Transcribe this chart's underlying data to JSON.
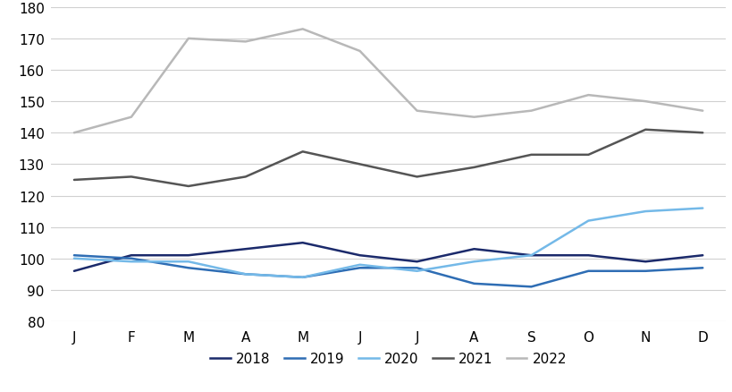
{
  "months": [
    "J",
    "F",
    "M",
    "A",
    "M",
    "J",
    "J",
    "A",
    "S",
    "O",
    "N",
    "D"
  ],
  "series": {
    "2018": [
      96,
      101,
      101,
      103,
      105,
      101,
      99,
      103,
      101,
      101,
      99,
      101
    ],
    "2019": [
      101,
      100,
      97,
      95,
      94,
      97,
      97,
      92,
      91,
      96,
      96,
      97
    ],
    "2020": [
      100,
      99,
      99,
      95,
      94,
      98,
      96,
      99,
      101,
      112,
      115,
      116
    ],
    "2021": [
      125,
      126,
      123,
      126,
      134,
      130,
      126,
      129,
      133,
      133,
      141,
      140
    ],
    "2022": [
      140,
      145,
      170,
      169,
      173,
      166,
      147,
      145,
      147,
      152,
      150,
      147
    ]
  },
  "colors": {
    "2018": "#1b2a6b",
    "2019": "#2e6db4",
    "2020": "#74b9e8",
    "2021": "#555555",
    "2022": "#b8b8b8"
  },
  "linewidths": {
    "2018": 1.8,
    "2019": 1.8,
    "2020": 1.8,
    "2021": 1.8,
    "2022": 1.8
  },
  "ylim": [
    80,
    180
  ],
  "yticks": [
    80,
    90,
    100,
    110,
    120,
    130,
    140,
    150,
    160,
    170,
    180
  ],
  "background_color": "#ffffff",
  "grid_color": "#d0d0d0",
  "legend_order": [
    "2018",
    "2019",
    "2020",
    "2021",
    "2022"
  ]
}
